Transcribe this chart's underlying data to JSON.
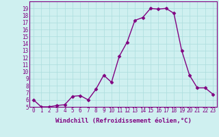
{
  "x": [
    0,
    1,
    2,
    3,
    4,
    5,
    6,
    7,
    8,
    9,
    10,
    11,
    12,
    13,
    14,
    15,
    16,
    17,
    18,
    19,
    20,
    21,
    22,
    23
  ],
  "y": [
    6.0,
    5.0,
    5.0,
    5.2,
    5.3,
    6.5,
    6.6,
    6.0,
    7.5,
    9.5,
    8.5,
    12.2,
    14.2,
    17.3,
    17.7,
    19.0,
    18.9,
    19.0,
    18.3,
    13.0,
    9.5,
    7.7,
    7.7,
    6.8
  ],
  "ylim": [
    5,
    20
  ],
  "yticks": [
    5,
    6,
    7,
    8,
    9,
    10,
    11,
    12,
    13,
    14,
    15,
    16,
    17,
    18,
    19
  ],
  "xticks": [
    0,
    1,
    2,
    3,
    4,
    5,
    6,
    7,
    8,
    9,
    10,
    11,
    12,
    13,
    14,
    15,
    16,
    17,
    18,
    19,
    20,
    21,
    22,
    23
  ],
  "xlabel": "Windchill (Refroidissement éolien,°C)",
  "line_color": "#800080",
  "marker": "D",
  "marker_size": 2.5,
  "bg_color": "#cff0f0",
  "grid_color": "#aadddd",
  "line_width": 1.0,
  "tick_fontsize": 5.5,
  "xlabel_fontsize": 6.5
}
